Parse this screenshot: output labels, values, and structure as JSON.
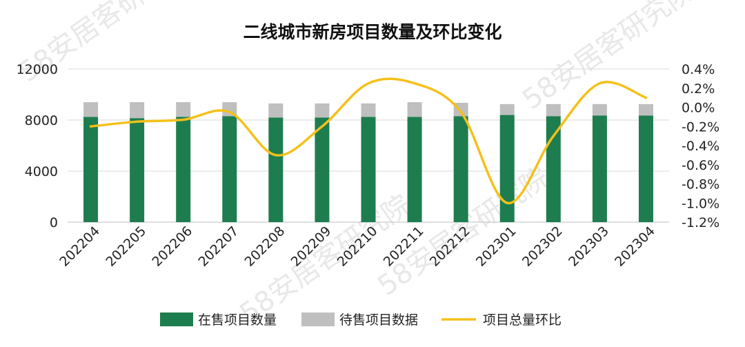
{
  "chart_data": {
    "type": "bar",
    "subtype": "stacked-bar-with-line",
    "title": "二线城市新房项目数量及环比变化",
    "categories": [
      "202204",
      "202205",
      "202206",
      "202207",
      "202208",
      "202209",
      "202210",
      "202211",
      "202212",
      "202301",
      "202302",
      "202303",
      "202304"
    ],
    "series": [
      {
        "name": "在售项目数量",
        "kind": "bar",
        "axis": "left",
        "color": "#1e7d4e",
        "values": [
          8250,
          8150,
          8250,
          8300,
          8200,
          8200,
          8250,
          8250,
          8300,
          8400,
          8300,
          8350,
          8350
        ]
      },
      {
        "name": "待售项目数据",
        "kind": "bar",
        "axis": "left",
        "color": "#bfbfbf",
        "values": [
          1150,
          1250,
          1150,
          1100,
          1100,
          1100,
          1050,
          1150,
          1050,
          850,
          950,
          900,
          900
        ]
      },
      {
        "name": "项目总量环比",
        "kind": "line",
        "axis": "right",
        "color": "#f5c01a",
        "values": [
          -0.2,
          -0.15,
          -0.13,
          -0.05,
          -0.5,
          -0.2,
          0.25,
          0.25,
          -0.05,
          -1.0,
          -0.3,
          0.25,
          0.1
        ]
      }
    ],
    "y_left": {
      "min": 0,
      "max": 12000,
      "ticks": [
        0,
        4000,
        8000,
        12000
      ]
    },
    "y_right": {
      "min": -1.2,
      "max": 0.4,
      "ticks": [
        "0.4%",
        "0.2%",
        "0.0%",
        "-0.2%",
        "-0.4%",
        "-0.6%",
        "-0.8%",
        "-1.0%",
        "-1.2%"
      ]
    },
    "grid": true,
    "legend_position": "bottom"
  },
  "watermark": "58安居客研究院"
}
